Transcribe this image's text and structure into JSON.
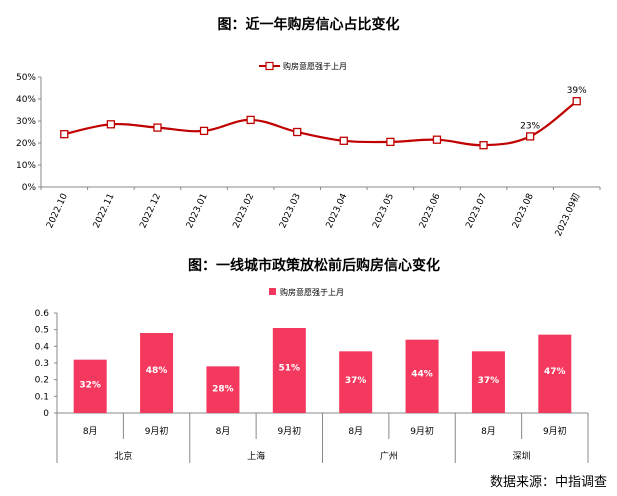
{
  "source": "数据来源：中指调查",
  "chart_data": [
    {
      "type": "line",
      "title": "图：近一年购房信心占比变化",
      "series": [
        {
          "name": "购房意愿强于上月",
          "color": "#c00000",
          "values": [
            24,
            28.5,
            27,
            25.5,
            30.5,
            25,
            21,
            20.5,
            21.5,
            19,
            23,
            39
          ]
        }
      ],
      "x": [
        "2022.10",
        "2022.11",
        "2022.12",
        "2023.01",
        "2023.02",
        "2023.03",
        "2023.04",
        "2023.05",
        "2023.06",
        "2023.07",
        "2023.08",
        "2023.09初"
      ],
      "yticks": [
        "0%",
        "10%",
        "20%",
        "30%",
        "40%",
        "50%"
      ],
      "ylim": [
        0,
        50
      ],
      "data_labels": [
        {
          "index": 10,
          "text": "23%"
        },
        {
          "index": 11,
          "text": "39%"
        }
      ],
      "legend_position": "top",
      "grid": false
    },
    {
      "type": "bar",
      "title": "图：一线城市政策放松前后购房信心变化",
      "series": [
        {
          "name": "购房意愿强于上月",
          "color": "#f4385e",
          "values": [
            0.32,
            0.48,
            0.28,
            0.51,
            0.37,
            0.44,
            0.37,
            0.47
          ],
          "labels": [
            "32%",
            "48%",
            "28%",
            "51%",
            "37%",
            "44%",
            "37%",
            "47%"
          ]
        }
      ],
      "categories": [
        "8月",
        "9月初",
        "8月",
        "9月初",
        "8月",
        "9月初",
        "8月",
        "9月初"
      ],
      "groups": [
        "北京",
        "上海",
        "广州",
        "深圳"
      ],
      "yticks": [
        "0",
        "0.1",
        "0.2",
        "0.3",
        "0.4",
        "0.5",
        "0.6"
      ],
      "ylim": [
        0,
        0.6
      ],
      "legend_position": "top",
      "grid": false
    }
  ]
}
